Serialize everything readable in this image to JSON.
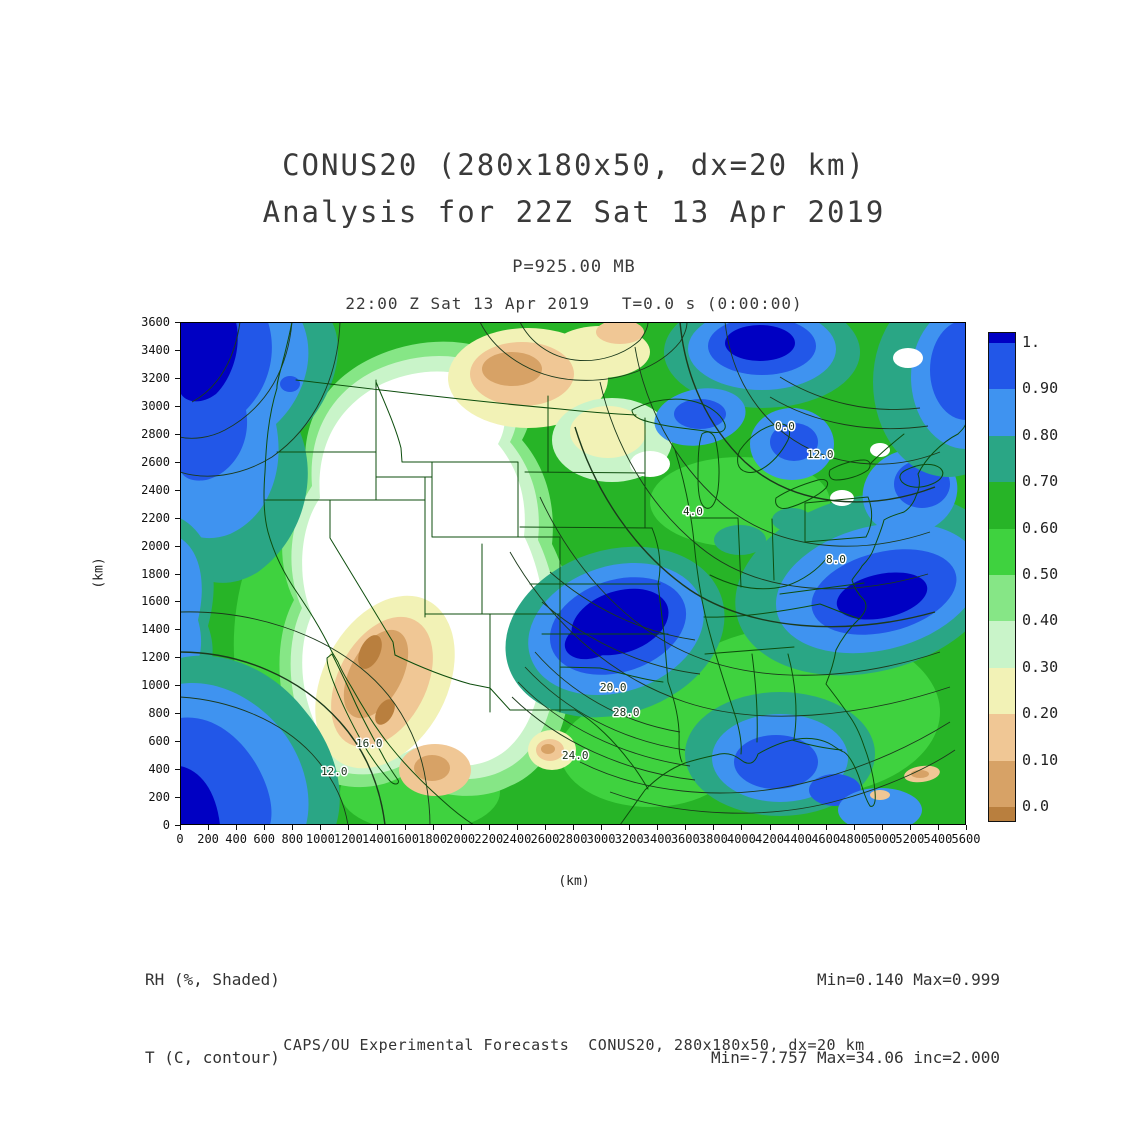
{
  "title": {
    "line1": "CONUS20 (280x180x50, dx=20 km)",
    "line2": "Analysis for 22Z Sat 13 Apr 2019"
  },
  "subtitle": {
    "pressure": "P=925.00 MB",
    "time": "22:00 Z Sat 13 Apr 2019   T=0.0 s (0:00:00)"
  },
  "axes": {
    "x_label": "(km)",
    "y_label": "(km)",
    "x_ticks": [
      "0",
      "200",
      "400",
      "600",
      "800",
      "1000",
      "1200",
      "1400",
      "1600",
      "1800",
      "2000",
      "2200",
      "2400",
      "2600",
      "2800",
      "3000",
      "3200",
      "3400",
      "3600",
      "3800",
      "4000",
      "4200",
      "4400",
      "4600",
      "4800",
      "5000",
      "5200",
      "5400",
      "5600"
    ],
    "y_ticks": [
      "3600",
      "3400",
      "3200",
      "3000",
      "2800",
      "2600",
      "2400",
      "2200",
      "2000",
      "1800",
      "1600",
      "1400",
      "1200",
      "1000",
      "800",
      "600",
      "400",
      "200",
      "0"
    ]
  },
  "colorbar": {
    "labels": [
      "1.",
      "0.90",
      "0.80",
      "0.70",
      "0.60",
      "0.50",
      "0.40",
      "0.30",
      "0.20",
      "0.10",
      "0.0"
    ],
    "colors": [
      "#0000c3",
      "#2257e8",
      "#3f93f0",
      "#2aa685",
      "#27b427",
      "#3fd23f",
      "#86e686",
      "#c9f4c9",
      "#f2f2b6",
      "#f0c795",
      "#d7a266",
      "#b97f3e"
    ]
  },
  "legend": {
    "field1": "RH (%, Shaded)",
    "field2": "T (C, contour)",
    "stats1": "Min=0.140 Max=0.999",
    "stats2": "Min=-7.757 Max=34.06 inc=2.000"
  },
  "footer": "CAPS/OU Experimental Forecasts  CONUS20, 280x180x50, dx=20 km",
  "map": {
    "contour_labels": [
      "0.0",
      "12.0",
      "4.0",
      "8.0",
      "20.0",
      "28.0",
      "24.0",
      "16.0",
      "12.0"
    ]
  },
  "chart_data": {
    "type": "heatmap",
    "title": "CONUS20 (280x180x50, dx=20 km) Analysis for 22Z Sat 13 Apr 2019",
    "level": "P=925.00 MB",
    "valid_time": "22:00 Z Sat 13 Apr 2019",
    "forecast_time": "T=0.0 s (0:00:00)",
    "xlabel": "(km)",
    "ylabel": "(km)",
    "xlim": [
      0,
      5600
    ],
    "ylim": [
      0,
      3600
    ],
    "x_tick_interval": 200,
    "y_tick_interval": 200,
    "grid": false,
    "legend_position": "right",
    "shaded_field": {
      "name": "RH",
      "units": "%",
      "style": "Shaded",
      "min": 0.14,
      "max": 0.999,
      "colorbar_levels": [
        0.0,
        0.1,
        0.2,
        0.3,
        0.4,
        0.5,
        0.6,
        0.7,
        0.8,
        0.9,
        1.0
      ]
    },
    "contour_field": {
      "name": "T",
      "units": "C",
      "style": "contour",
      "min": -7.757,
      "max": 34.06,
      "interval": 2.0,
      "labeled_contours_visible": [
        0.0,
        4.0,
        8.0,
        12.0,
        16.0,
        20.0,
        24.0,
        28.0
      ]
    },
    "footer": "CAPS/OU Experimental Forecasts  CONUS20, 280x180x50, dx=20 km"
  }
}
